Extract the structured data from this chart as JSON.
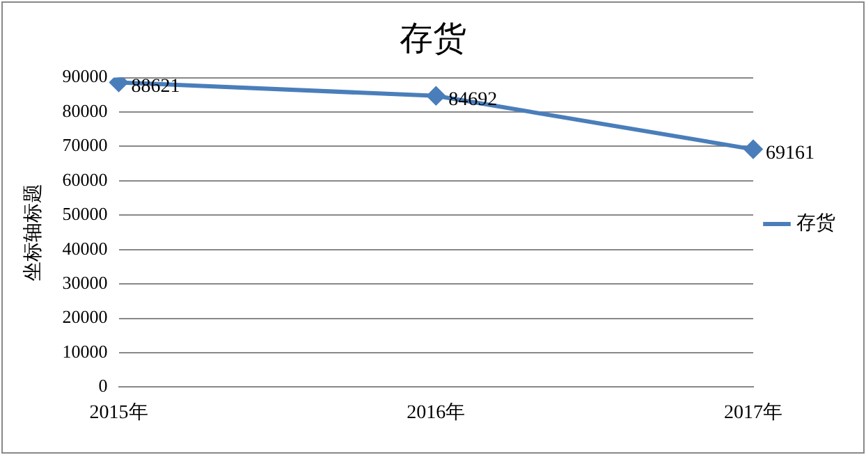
{
  "chart_data": {
    "type": "line",
    "title": "存货",
    "ylabel": "坐标轴标题",
    "categories": [
      "2015年",
      "2016年",
      "2017年"
    ],
    "series": [
      {
        "name": "存货",
        "color": "#4a7ebb",
        "values": [
          88621,
          84692,
          69161
        ]
      }
    ],
    "ylim": [
      0,
      90000
    ],
    "yticks": [
      0,
      10000,
      20000,
      30000,
      40000,
      50000,
      60000,
      70000,
      80000,
      90000
    ],
    "grid": "y",
    "legend": "right",
    "marker": "diamond",
    "line_style": "solid",
    "data_labels": true
  }
}
